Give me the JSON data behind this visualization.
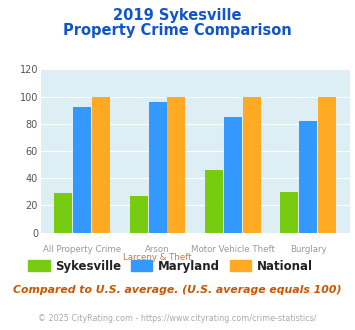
{
  "title_line1": "2019 Sykesville",
  "title_line2": "Property Crime Comparison",
  "cat_labels_top": [
    "All Property Crime",
    "Arson",
    "Motor Vehicle Theft",
    "Burglary"
  ],
  "cat_labels_bot": [
    "",
    "Larceny & Theft",
    "",
    ""
  ],
  "sykesville": [
    29,
    27,
    46,
    30
  ],
  "maryland": [
    92,
    96,
    85,
    82
  ],
  "national": [
    100,
    100,
    100,
    100
  ],
  "color_sykesville": "#77cc11",
  "color_maryland": "#3399ff",
  "color_national": "#ffaa22",
  "ylim": [
    0,
    120
  ],
  "yticks": [
    0,
    20,
    40,
    60,
    80,
    100,
    120
  ],
  "background_color": "#ddeef5",
  "title_color": "#1155cc",
  "xlabel_top_color": "#999999",
  "xlabel_bot_color": "#cc7744",
  "legend_label_sykesville": "Sykesville",
  "legend_label_maryland": "Maryland",
  "legend_label_national": "National",
  "footnote1": "Compared to U.S. average. (U.S. average equals 100)",
  "footnote2": "© 2025 CityRating.com - https://www.cityrating.com/crime-statistics/",
  "footnote1_color": "#cc5500",
  "footnote2_color": "#aaaaaa",
  "footnote2_link_color": "#3399cc"
}
